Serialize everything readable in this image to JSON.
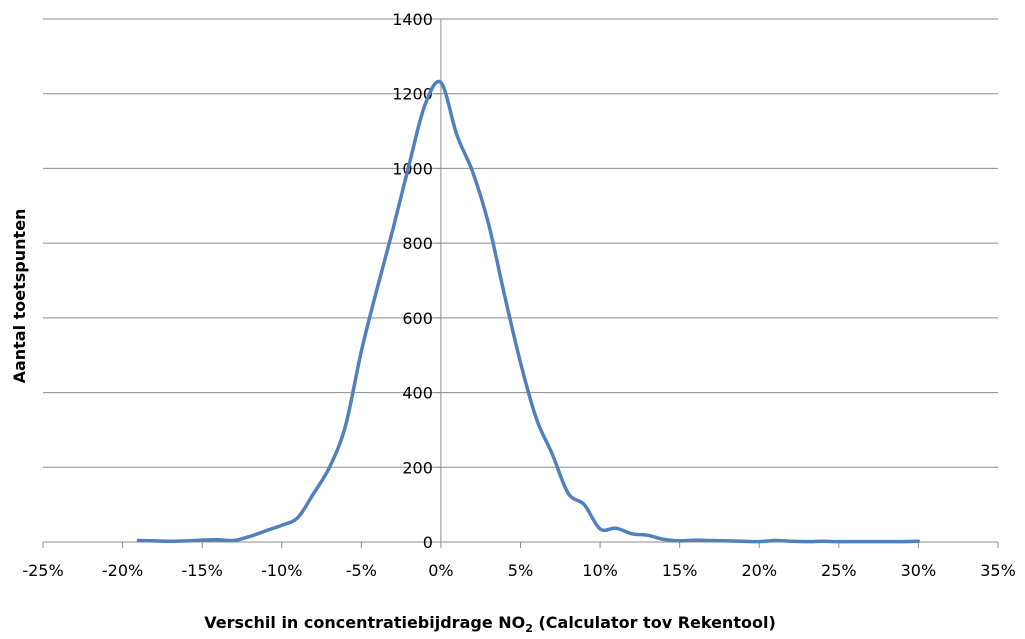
{
  "chart_data": {
    "type": "line",
    "xlabel_main": "Verschil in concentratiebijdrage NO",
    "xlabel_sub": "2",
    "xlabel_tail": " (Calculator tov Rekentool)",
    "ylabel": "Aantal toetspunten",
    "xlim": [
      -25,
      35
    ],
    "ylim": [
      0,
      1400
    ],
    "x_ticks": [
      -25,
      -20,
      -15,
      -10,
      -5,
      0,
      5,
      10,
      15,
      20,
      25,
      30,
      35
    ],
    "x_tick_labels": [
      "-25%",
      "-20%",
      "-15%",
      "-10%",
      "-5%",
      "0%",
      "5%",
      "10%",
      "15%",
      "20%",
      "25%",
      "30%",
      "35%"
    ],
    "y_ticks": [
      0,
      200,
      400,
      600,
      800,
      1000,
      1200,
      1400
    ],
    "y_tick_labels": [
      "0",
      "200",
      "400",
      "600",
      "800",
      "1000",
      "1200",
      "1400"
    ],
    "grid": "horizontal",
    "legend": "none",
    "line_color": "#4f81bd",
    "series": [
      {
        "x": [
          -19,
          -18,
          -17,
          -16,
          -15,
          -14,
          -13,
          -12,
          -11,
          -10,
          -9,
          -8,
          -7,
          -6,
          -5,
          -4,
          -3,
          -2,
          -1,
          0,
          1,
          2,
          3,
          4,
          5,
          6,
          7,
          8,
          9,
          10,
          11,
          12,
          13,
          14,
          15,
          16,
          17,
          18,
          19,
          20,
          21,
          22,
          23,
          24,
          25,
          26,
          27,
          28,
          29,
          30
        ],
        "values": [
          4,
          3,
          2,
          3,
          5,
          6,
          4,
          15,
          30,
          45,
          65,
          130,
          200,
          310,
          510,
          680,
          840,
          1010,
          1170,
          1230,
          1090,
          990,
          850,
          660,
          480,
          330,
          235,
          130,
          100,
          35,
          37,
          22,
          18,
          7,
          3,
          5,
          4,
          3,
          2,
          1,
          4,
          2,
          1,
          2,
          1,
          1,
          1,
          1,
          1,
          2
        ]
      }
    ]
  }
}
